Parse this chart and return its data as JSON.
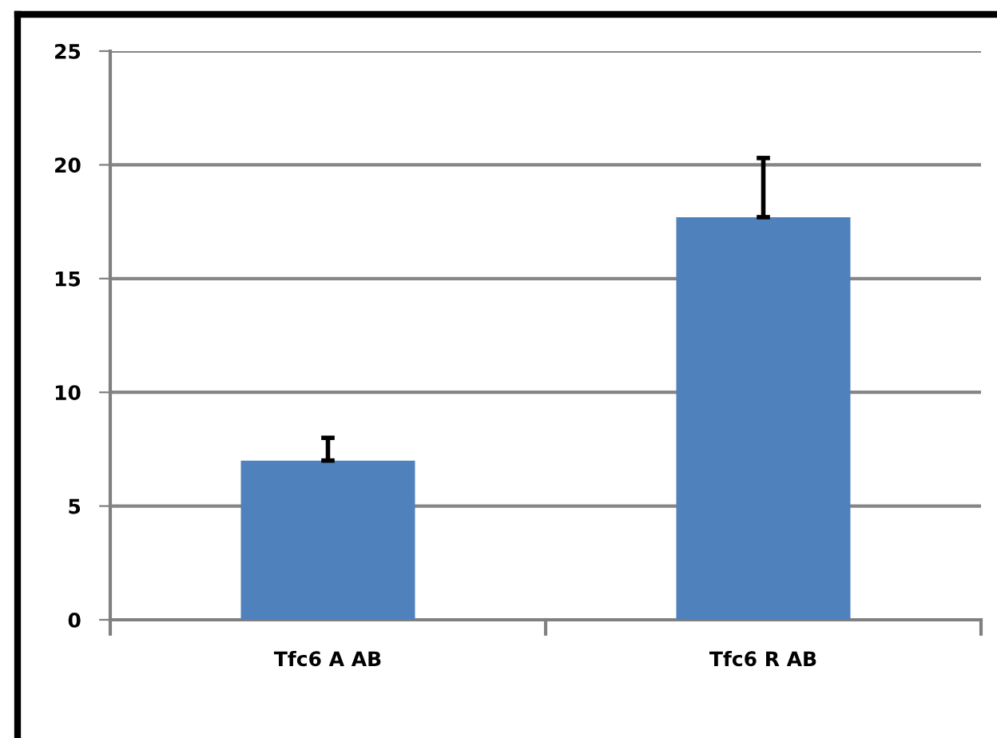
{
  "chart_data": {
    "type": "bar",
    "categories": [
      "Tfc6 A AB",
      "Tfc6 R AB"
    ],
    "values": [
      7.0,
      17.7
    ],
    "color": "#4f81bd",
    "errors": [
      [
        7.0,
        8.0
      ],
      [
        17.7,
        20.3
      ]
    ],
    "ylim": [
      0,
      25
    ],
    "yticks": [
      0,
      5,
      10,
      15,
      20,
      25
    ],
    "grid": "y",
    "legend": false
  }
}
